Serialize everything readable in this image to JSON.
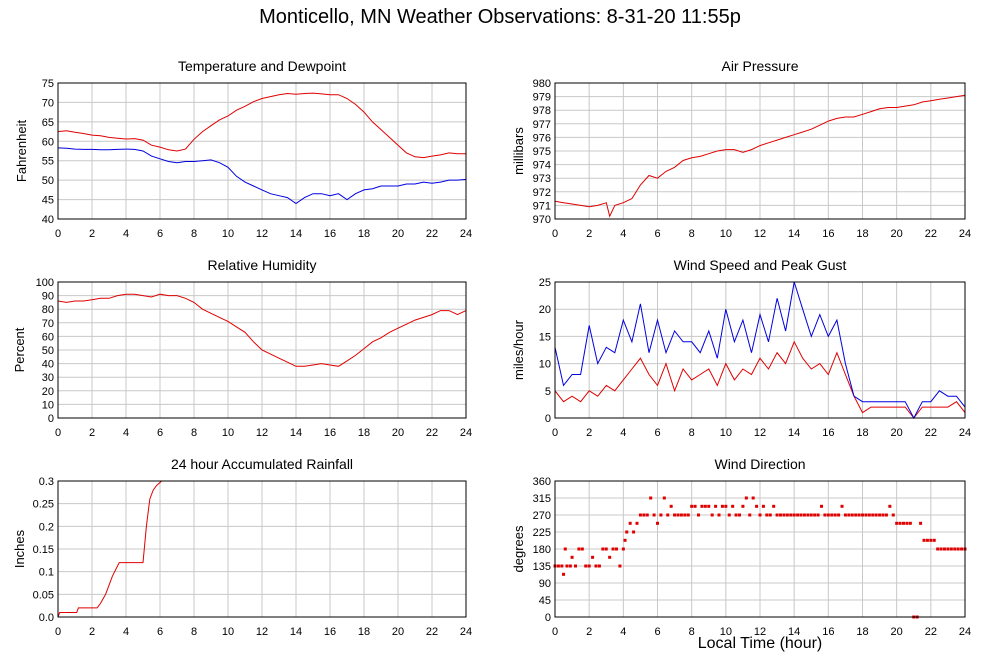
{
  "page_title": "Monticello, MN Weather Observations: 8-31-20 11:55p",
  "x_axis_label": "Local Time (hour)",
  "colors": {
    "red": "#e00000",
    "blue": "#0000e0",
    "grid": "#c8c8c8",
    "frame": "#000000"
  },
  "chart_data": [
    {
      "id": "temp",
      "type": "line",
      "title": "Temperature and Dewpoint",
      "ylabel": "Fahrenheit",
      "xlabel": "",
      "xlim": [
        0,
        24
      ],
      "ylim": [
        40,
        75
      ],
      "x_ticks": [
        0,
        2,
        4,
        6,
        8,
        10,
        12,
        14,
        16,
        18,
        20,
        22,
        24
      ],
      "y_ticks": [
        "40",
        "45",
        "50",
        "55",
        "60",
        "65",
        "70",
        "75"
      ],
      "grid": true,
      "series": [
        {
          "color": "#e00000",
          "x": [
            0,
            0.5,
            1,
            1.5,
            2,
            2.5,
            3,
            3.5,
            4,
            4.5,
            5,
            5.5,
            6,
            6.5,
            7,
            7.5,
            8,
            8.5,
            9,
            9.5,
            10,
            10.5,
            11,
            11.5,
            12,
            12.5,
            13,
            13.5,
            14,
            14.5,
            15,
            15.5,
            16,
            16.5,
            17,
            17.5,
            18,
            18.5,
            19,
            19.5,
            20,
            20.5,
            21,
            21.5,
            22,
            22.5,
            23,
            23.5,
            24
          ],
          "y": [
            62.5,
            62.7,
            62.3,
            62,
            61.6,
            61.4,
            61,
            60.8,
            60.6,
            60.7,
            60.3,
            59,
            58.5,
            57.8,
            57.5,
            58,
            60.5,
            62.5,
            64,
            65.5,
            66.5,
            68,
            69,
            70.2,
            71,
            71.5,
            72,
            72.3,
            72.1,
            72.3,
            72.4,
            72.2,
            72,
            72,
            71,
            69.5,
            67.5,
            65,
            63,
            61,
            59,
            57,
            56,
            55.8,
            56.2,
            56.5,
            57,
            56.8,
            56.8
          ]
        },
        {
          "color": "#0000e0",
          "x": [
            0,
            0.5,
            1,
            1.5,
            2,
            2.5,
            3,
            3.5,
            4,
            4.5,
            5,
            5.5,
            6,
            6.5,
            7,
            7.5,
            8,
            8.5,
            9,
            9.5,
            10,
            10.5,
            11,
            11.5,
            12,
            12.5,
            13,
            13.5,
            14,
            14.5,
            15,
            15.5,
            16,
            16.5,
            17,
            17.5,
            18,
            18.5,
            19,
            19.5,
            20,
            20.5,
            21,
            21.5,
            22,
            22.5,
            23,
            23.5,
            24
          ],
          "y": [
            58.3,
            58.2,
            58,
            57.9,
            57.9,
            57.8,
            57.8,
            57.9,
            58,
            57.9,
            57.5,
            56.2,
            55.5,
            54.8,
            54.5,
            54.8,
            54.8,
            55,
            55.2,
            54.5,
            53.3,
            51,
            49.5,
            48.5,
            47.5,
            46.5,
            46,
            45.5,
            44,
            45.5,
            46.5,
            46.5,
            46,
            46.5,
            45,
            46.5,
            47.5,
            47.8,
            48.5,
            48.5,
            48.5,
            49,
            49,
            49.5,
            49.2,
            49.5,
            50,
            50,
            50.2
          ]
        }
      ]
    },
    {
      "id": "pressure",
      "type": "line",
      "title": "Air Pressure",
      "ylabel": "millibars",
      "xlabel": "",
      "xlim": [
        0,
        24
      ],
      "ylim": [
        970,
        980
      ],
      "x_ticks": [
        0,
        2,
        4,
        6,
        8,
        10,
        12,
        14,
        16,
        18,
        20,
        22,
        24
      ],
      "y_ticks": [
        "970",
        "971",
        "972",
        "973",
        "974",
        "975",
        "976",
        "977",
        "978",
        "979",
        "980"
      ],
      "grid": true,
      "series": [
        {
          "color": "#e00000",
          "x": [
            0,
            0.5,
            1,
            1.5,
            2,
            2.5,
            3,
            3.2,
            3.5,
            4,
            4.5,
            5,
            5.5,
            6,
            6.5,
            7,
            7.5,
            8,
            8.5,
            9,
            9.5,
            10,
            10.5,
            11,
            11.5,
            12,
            12.5,
            13,
            13.5,
            14,
            14.5,
            15,
            15.5,
            16,
            16.5,
            17,
            17.5,
            18,
            18.5,
            19,
            19.5,
            20,
            20.5,
            21,
            21.5,
            22,
            22.5,
            23,
            23.5,
            24
          ],
          "y": [
            971.3,
            971.2,
            971.1,
            971,
            970.9,
            971,
            971.2,
            970.2,
            971,
            971.2,
            971.5,
            972.5,
            973.2,
            973,
            973.5,
            973.8,
            974.3,
            974.5,
            974.6,
            974.8,
            975,
            975.1,
            975.1,
            974.9,
            975.1,
            975.4,
            975.6,
            975.8,
            976,
            976.2,
            976.4,
            976.6,
            976.9,
            977.2,
            977.4,
            977.5,
            977.5,
            977.7,
            977.9,
            978.1,
            978.2,
            978.2,
            978.3,
            978.4,
            978.6,
            978.7,
            978.8,
            978.9,
            979,
            979.1
          ]
        }
      ]
    },
    {
      "id": "humidity",
      "type": "line",
      "title": "Relative Humidity",
      "ylabel": "Percent",
      "xlabel": "",
      "xlim": [
        0,
        24
      ],
      "ylim": [
        0,
        100
      ],
      "x_ticks": [
        0,
        2,
        4,
        6,
        8,
        10,
        12,
        14,
        16,
        18,
        20,
        22,
        24
      ],
      "y_ticks": [
        "0",
        "10",
        "20",
        "30",
        "40",
        "50",
        "60",
        "70",
        "80",
        "90",
        "100"
      ],
      "grid": true,
      "series": [
        {
          "color": "#e00000",
          "x": [
            0,
            0.5,
            1,
            1.5,
            2,
            2.5,
            3,
            3.5,
            4,
            4.5,
            5,
            5.5,
            6,
            6.5,
            7,
            7.5,
            8,
            8.5,
            9,
            9.5,
            10,
            10.5,
            11,
            11.5,
            12,
            12.5,
            13,
            13.5,
            14,
            14.5,
            15,
            15.5,
            16,
            16.5,
            17,
            17.5,
            18,
            18.5,
            19,
            19.5,
            20,
            20.5,
            21,
            21.5,
            22,
            22.5,
            23,
            23.5,
            24
          ],
          "y": [
            86,
            85,
            86,
            86,
            87,
            88,
            88,
            90,
            91,
            91,
            90,
            89,
            91,
            90,
            90,
            88,
            85,
            80,
            77,
            74,
            71,
            67,
            63,
            56,
            50,
            47,
            44,
            41,
            38,
            38,
            39,
            40,
            39,
            38,
            42,
            46,
            51,
            56,
            59,
            63,
            66,
            69,
            72,
            74,
            76,
            79,
            79,
            76,
            79
          ]
        }
      ]
    },
    {
      "id": "wind",
      "type": "line",
      "title": "Wind Speed and Peak Gust",
      "ylabel": "miles/hour",
      "xlabel": "",
      "xlim": [
        0,
        24
      ],
      "ylim": [
        0,
        25
      ],
      "x_ticks": [
        0,
        2,
        4,
        6,
        8,
        10,
        12,
        14,
        16,
        18,
        20,
        22,
        24
      ],
      "y_ticks": [
        "0",
        "5",
        "10",
        "15",
        "20",
        "25"
      ],
      "grid": true,
      "series": [
        {
          "color": "#e00000",
          "x": [
            0,
            0.5,
            1,
            1.5,
            2,
            2.5,
            3,
            3.5,
            4,
            4.5,
            5,
            5.5,
            6,
            6.5,
            7,
            7.5,
            8,
            8.5,
            9,
            9.5,
            10,
            10.5,
            11,
            11.5,
            12,
            12.5,
            13,
            13.5,
            14,
            14.5,
            15,
            15.5,
            16,
            16.5,
            17,
            17.5,
            18,
            18.5,
            19,
            19.5,
            20,
            20.5,
            21,
            21.5,
            22,
            22.5,
            23,
            23.5,
            24
          ],
          "y": [
            5,
            3,
            4,
            3,
            5,
            4,
            6,
            5,
            7,
            9,
            11,
            8,
            6,
            10,
            5,
            9,
            7,
            8,
            9,
            6,
            10,
            7,
            9,
            8,
            11,
            9,
            12,
            10,
            14,
            11,
            9,
            10,
            8,
            12,
            8,
            4,
            1,
            2,
            2,
            2,
            2,
            2,
            0,
            2,
            2,
            2,
            2,
            3,
            1
          ]
        },
        {
          "color": "#0000e0",
          "x": [
            0,
            0.5,
            1,
            1.5,
            2,
            2.5,
            3,
            3.5,
            4,
            4.5,
            5,
            5.5,
            6,
            6.5,
            7,
            7.5,
            8,
            8.5,
            9,
            9.5,
            10,
            10.5,
            11,
            11.5,
            12,
            12.5,
            13,
            13.5,
            14,
            14.5,
            15,
            15.5,
            16,
            16.5,
            17,
            17.5,
            18,
            18.5,
            19,
            19.5,
            20,
            20.5,
            21,
            21.5,
            22,
            22.5,
            23,
            23.5,
            24
          ],
          "y": [
            13,
            6,
            8,
            8,
            17,
            10,
            13,
            12,
            18,
            14,
            21,
            12,
            18,
            12,
            16,
            14,
            14,
            12,
            16,
            11,
            20,
            14,
            18,
            12,
            19,
            14,
            22,
            16,
            25,
            20,
            15,
            19,
            15,
            18,
            10,
            4,
            3,
            3,
            3,
            3,
            3,
            3,
            0,
            3,
            3,
            5,
            4,
            4,
            2
          ]
        }
      ]
    },
    {
      "id": "rain",
      "type": "line",
      "title": "24 hour Accumulated Rainfall",
      "ylabel": "Inches",
      "xlabel": "",
      "xlim": [
        0,
        24
      ],
      "ylim": [
        0,
        0.3
      ],
      "x_ticks": [
        0,
        2,
        4,
        6,
        8,
        10,
        12,
        14,
        16,
        18,
        20,
        22,
        24
      ],
      "y_ticks": [
        "0.0",
        "0.05",
        "0.1",
        "0.15",
        "0.2",
        "0.25",
        "0.3"
      ],
      "grid": true,
      "series": [
        {
          "color": "#e00000",
          "x": [
            0,
            0.1,
            1.1,
            1.2,
            2.3,
            2.5,
            2.8,
            3.2,
            3.6,
            5.0,
            5.2,
            5.4,
            5.6,
            5.8,
            6.1
          ],
          "y": [
            0,
            0.01,
            0.01,
            0.02,
            0.02,
            0.03,
            0.05,
            0.09,
            0.12,
            0.12,
            0.2,
            0.26,
            0.28,
            0.29,
            0.3
          ]
        }
      ]
    },
    {
      "id": "direction",
      "type": "scatter",
      "title": "Wind Direction",
      "ylabel": "degrees",
      "xlabel": "Local Time (hour)",
      "xlim": [
        0,
        24
      ],
      "ylim": [
        0,
        360
      ],
      "x_ticks": [
        0,
        2,
        4,
        6,
        8,
        10,
        12,
        14,
        16,
        18,
        20,
        22,
        24
      ],
      "y_ticks": [
        "0",
        "45",
        "90",
        "135",
        "180",
        "225",
        "270",
        "315",
        "360"
      ],
      "grid": true,
      "series": [
        {
          "color": "#e00000",
          "x": [
            0,
            0.2,
            0.4,
            0.5,
            0.6,
            0.7,
            0.9,
            1.0,
            1.2,
            1.4,
            1.6,
            1.8,
            2.0,
            2.2,
            2.4,
            2.6,
            2.8,
            3.0,
            3.2,
            3.4,
            3.6,
            3.8,
            4.0,
            4.1,
            4.2,
            4.4,
            4.6,
            4.8,
            5.0,
            5.2,
            5.4,
            5.6,
            5.8,
            6.0,
            6.2,
            6.4,
            6.6,
            6.8,
            7.0,
            7.2,
            7.4,
            7.6,
            7.8,
            8.0,
            8.2,
            8.4,
            8.6,
            8.8,
            9.0,
            9.2,
            9.4,
            9.6,
            9.8,
            10.0,
            10.2,
            10.4,
            10.6,
            10.8,
            11.0,
            11.2,
            11.4,
            11.6,
            11.8,
            12.0,
            12.2,
            12.4,
            12.6,
            12.8,
            13.0,
            13.2,
            13.4,
            13.6,
            13.8,
            14.0,
            14.2,
            14.4,
            14.6,
            14.8,
            15.0,
            15.2,
            15.4,
            15.6,
            15.8,
            16.0,
            16.2,
            16.4,
            16.6,
            16.8,
            17.0,
            17.2,
            17.4,
            17.6,
            17.8,
            18.0,
            18.2,
            18.4,
            18.6,
            18.8,
            19.0,
            19.2,
            19.4,
            19.6,
            19.8,
            20.0,
            20.2,
            20.4,
            20.6,
            20.8,
            21.0,
            21.2,
            21.4,
            21.6,
            21.8,
            22.0,
            22.2,
            22.4,
            22.6,
            22.8,
            23.0,
            23.2,
            23.4,
            23.6,
            23.8,
            24.0
          ],
          "y": [
            135,
            135,
            135,
            113,
            180,
            135,
            135,
            158,
            135,
            180,
            180,
            135,
            135,
            158,
            135,
            135,
            180,
            180,
            158,
            180,
            180,
            135,
            180,
            203,
            225,
            248,
            225,
            248,
            270,
            270,
            270,
            315,
            270,
            248,
            270,
            315,
            270,
            293,
            270,
            270,
            270,
            270,
            270,
            293,
            293,
            270,
            293,
            293,
            293,
            270,
            293,
            270,
            293,
            293,
            270,
            293,
            270,
            270,
            293,
            315,
            270,
            315,
            293,
            270,
            293,
            270,
            270,
            293,
            270,
            270,
            270,
            270,
            270,
            270,
            270,
            270,
            270,
            270,
            270,
            270,
            270,
            293,
            270,
            270,
            270,
            270,
            270,
            293,
            270,
            270,
            270,
            270,
            270,
            270,
            270,
            270,
            270,
            270,
            270,
            270,
            270,
            293,
            270,
            248,
            248,
            248,
            248,
            248,
            0,
            0,
            248,
            203,
            203,
            203,
            203,
            180,
            180,
            180,
            180,
            180,
            180,
            180,
            180,
            180
          ]
        }
      ]
    }
  ]
}
